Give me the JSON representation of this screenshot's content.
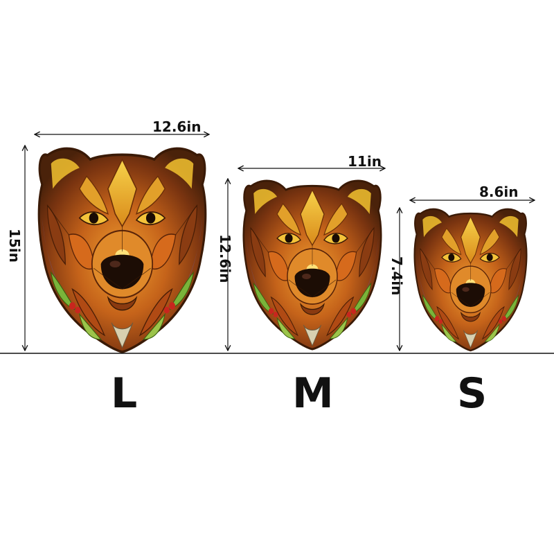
{
  "colors": {
    "background": "#ffffff",
    "line": "#111111",
    "fur_dark": "#5a2a0c",
    "fur_mid": "#a8480f",
    "fur_light": "#e7831c",
    "gold": "#f2c230",
    "leaf_green": "#7ab43a",
    "berry_red": "#c8261e"
  },
  "products": [
    {
      "size": "L",
      "width_label": "12.6in",
      "height_label": "15in",
      "icon": "bear-head-puzzle-icon"
    },
    {
      "size": "M",
      "width_label": "11in",
      "height_label": "12.6in",
      "icon": "bear-head-puzzle-icon"
    },
    {
      "size": "S",
      "width_label": "8.6in",
      "height_label": "7.4in",
      "icon": "bear-head-puzzle-icon"
    }
  ]
}
